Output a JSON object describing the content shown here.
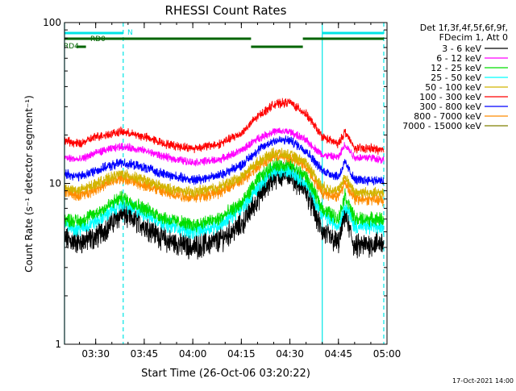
{
  "chart_data": {
    "type": "line",
    "title": "RHESSI Count Rates",
    "xlabel": "Start Time (26-Oct-06 03:20:22)",
    "ylabel": "Count Rate (s⁻¹ detector segment⁻¹)",
    "yscale": "log",
    "ylim": [
      1,
      100
    ],
    "xlim": [
      "03:20:22",
      "05:00:00"
    ],
    "x_ticks": [
      "03:30",
      "03:45",
      "04:00",
      "04:15",
      "04:30",
      "04:45",
      "05:00"
    ],
    "y_ticks": [
      "1",
      "10",
      "100"
    ],
    "legend_position": "right",
    "legend_header": [
      "Det 1f,3f,4f,5f,6f,9f,",
      "FDecim 1, Att 0"
    ],
    "footer_date": "17-Oct-2021 14:00",
    "x_profile": [
      "03:20:22",
      "03:25",
      "03:30",
      "03:38",
      "03:45",
      "03:52",
      "04:00",
      "04:08",
      "04:15",
      "04:20",
      "04:25",
      "04:30",
      "04:35",
      "04:40",
      "04:45",
      "04:47",
      "04:50",
      "04:55",
      "04:59"
    ],
    "series": [
      {
        "name": "3 - 6 keV",
        "color": "#000000",
        "values": [
          4.5,
          4.3,
          4.6,
          6.5,
          5.5,
          4.4,
          4.0,
          4.4,
          5.5,
          8.0,
          11.0,
          11.5,
          9.0,
          5.0,
          4.2,
          6.5,
          4.0,
          4.2,
          4.3
        ]
      },
      {
        "name": "6 - 12 keV",
        "color": "#ff00ff",
        "values": [
          14.5,
          14.0,
          15.5,
          17.0,
          16.0,
          14.5,
          13.5,
          14.0,
          16.0,
          19.0,
          21.0,
          21.0,
          18.5,
          15.0,
          14.5,
          17.5,
          14.5,
          14.5,
          14.0
        ]
      },
      {
        "name": "12 - 25 keV",
        "color": "#00dd00",
        "values": [
          6.0,
          5.8,
          6.5,
          8.2,
          7.0,
          6.0,
          5.5,
          6.0,
          7.5,
          10.5,
          13.0,
          13.0,
          11.0,
          7.0,
          6.0,
          8.5,
          6.0,
          6.0,
          6.0
        ]
      },
      {
        "name": "25 - 50 keV",
        "color": "#00ffff",
        "values": [
          5.5,
          5.2,
          5.8,
          7.5,
          6.5,
          5.6,
          5.0,
          5.5,
          7.0,
          9.5,
          12.0,
          12.0,
          10.0,
          6.5,
          5.4,
          7.5,
          5.4,
          5.4,
          5.3
        ]
      },
      {
        "name": "50 - 100 keV",
        "color": "#d2b400",
        "values": [
          9.5,
          9.0,
          10.0,
          11.5,
          10.5,
          9.3,
          8.8,
          9.5,
          11.0,
          13.5,
          15.5,
          15.0,
          13.5,
          9.5,
          9.0,
          11.0,
          8.8,
          8.8,
          8.6
        ]
      },
      {
        "name": "100 - 300 keV",
        "color": "#ff0000",
        "values": [
          18.5,
          17.5,
          19.5,
          21.0,
          19.5,
          17.5,
          16.5,
          17.5,
          20.5,
          26.0,
          31.0,
          32.0,
          27.0,
          19.5,
          17.5,
          21.0,
          16.5,
          16.5,
          16.0
        ]
      },
      {
        "name": "300 - 800 keV",
        "color": "#0000ff",
        "values": [
          11.5,
          11.0,
          12.0,
          13.5,
          12.5,
          11.3,
          10.5,
          11.2,
          13.0,
          16.0,
          18.5,
          18.5,
          16.0,
          12.0,
          11.0,
          13.5,
          10.5,
          10.5,
          10.3
        ]
      },
      {
        "name": "800 - 7000 keV",
        "color": "#ff8c00",
        "values": [
          8.8,
          8.4,
          9.3,
          10.8,
          9.8,
          8.7,
          8.2,
          8.8,
          10.3,
          12.8,
          14.8,
          14.5,
          12.8,
          8.8,
          8.3,
          10.2,
          8.0,
          8.0,
          7.8
        ]
      },
      {
        "name": "7000 - 15000 keV",
        "color": "#808000",
        "values": []
      }
    ],
    "annotations": {
      "n_label": "N",
      "rd0_label": "RD0",
      "rd4_label": "RD4",
      "vertical_lines_solid": [
        "03:20:22",
        "04:40:00"
      ],
      "vertical_lines_dashed": [
        "03:38:30",
        "04:59:00"
      ],
      "night_segments": [
        [
          "03:20:22",
          "03:38:30"
        ],
        [
          "04:40:00",
          "04:59:00"
        ]
      ],
      "saa_segments_upper": [
        [
          "03:20:22",
          "04:18:00"
        ],
        [
          "04:34:00",
          "04:59:00"
        ]
      ],
      "saa_segments_lower": [
        [
          "03:24:00",
          "03:27:00"
        ],
        [
          "04:18:00",
          "04:34:00"
        ]
      ]
    }
  }
}
